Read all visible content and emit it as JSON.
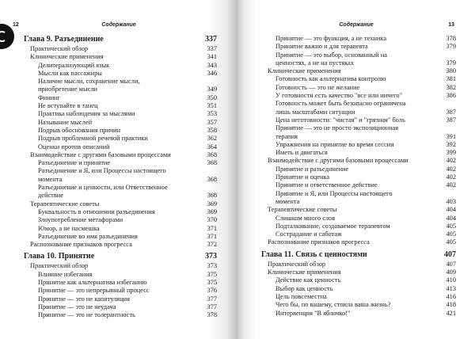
{
  "pages": [
    {
      "number": "12",
      "header": "Содержание",
      "entries": [
        {
          "kind": "chapter",
          "text": "Глава 9. Разъединение",
          "page": "337"
        },
        {
          "kind": "section",
          "text": "Практический обзор",
          "page": "337"
        },
        {
          "kind": "section",
          "text": "Клинические применения",
          "page": "341"
        },
        {
          "kind": "subsection",
          "text": "Делитерализующий язык",
          "page": "343"
        },
        {
          "kind": "subsection",
          "text": "Мысли как пассажиры",
          "page": "346"
        },
        {
          "kind": "subsection",
          "text": "Наличие мысли, сохранение мысли, приобретение мысли",
          "page": "349"
        },
        {
          "kind": "subsection",
          "text": "Фининг",
          "page": "350"
        },
        {
          "kind": "subsection",
          "text": "Не вступайте в танец",
          "page": "351"
        },
        {
          "kind": "subsection",
          "text": "Практика наблюдения за мыслями",
          "page": "353"
        },
        {
          "kind": "subsection",
          "text": "Называние мыслей",
          "page": "357"
        },
        {
          "kind": "subsection",
          "text": "Подрыв обоснования причин",
          "page": "358"
        },
        {
          "kind": "subsection",
          "text": "Подрыв проблемной речевой практики",
          "page": "362"
        },
        {
          "kind": "subsection",
          "text": "Оценки против описаний",
          "page": "364"
        },
        {
          "kind": "section",
          "text": "Взаимодействие с другими базовыми процессами",
          "page": "368"
        },
        {
          "kind": "subsection",
          "text": "Разъединение и принятие",
          "page": "368"
        },
        {
          "kind": "subsection",
          "text": "Разъединение и Я, или Процессы настоящего момента",
          "page": "368"
        },
        {
          "kind": "subsection",
          "text": "Разъединение и ценности, или Ответственное действие",
          "page": "368"
        },
        {
          "kind": "section",
          "text": "Терапевтические советы",
          "page": "369"
        },
        {
          "kind": "subsection",
          "text": "Буквальность в отношении разъединения",
          "page": "369"
        },
        {
          "kind": "subsection",
          "text": "Злоупотребление метафорами",
          "page": "370"
        },
        {
          "kind": "subsection",
          "text": "Юмор, а не насмешка",
          "page": "371"
        },
        {
          "kind": "subsection",
          "text": "Разъединение во имя разъединения",
          "page": "371"
        },
        {
          "kind": "section",
          "text": "Распознавание признаков прогресса",
          "page": "372"
        },
        {
          "kind": "chapter",
          "text": "Глава 10. Принятие",
          "page": "373"
        },
        {
          "kind": "section",
          "text": "Практический обзор",
          "page": "373"
        },
        {
          "kind": "subsection",
          "text": "Влияние избегания",
          "page": "375"
        },
        {
          "kind": "subsection",
          "text": "Принятие как альтернатива избеганию",
          "page": "375"
        },
        {
          "kind": "subsection",
          "text": "Принятие — это непрерывный процесс",
          "page": "376"
        },
        {
          "kind": "subsection",
          "text": "Принятие — это не капитуляция",
          "page": "377"
        },
        {
          "kind": "subsection",
          "text": "Принятие — это не неудача",
          "page": "377"
        },
        {
          "kind": "subsection",
          "text": "Принятие — это не толерантность",
          "page": "378"
        }
      ]
    },
    {
      "number": "13",
      "header": "Содержание",
      "entries": [
        {
          "kind": "subsection",
          "text": "Принятие — это функция, а не техника",
          "page": "378"
        },
        {
          "kind": "subsection",
          "text": "Принятие важно и для терапевта",
          "page": "379"
        },
        {
          "kind": "subsection",
          "text": "Принятие — это выбор, основанный на ценностях, а не на пустяках",
          "page": "379"
        },
        {
          "kind": "section",
          "text": "Клинические применения",
          "page": "380"
        },
        {
          "kind": "subsection",
          "text": "Готовность как альтернатива контролю",
          "page": "381"
        },
        {
          "kind": "subsection",
          "text": "Готовность — это не желание",
          "page": "382"
        },
        {
          "kind": "subsection",
          "text": "У готовности есть качество \"все или ничего\"",
          "page": "386"
        },
        {
          "kind": "subsection",
          "text": "Готовность может быть безопасно ограничена лишь масштабами ситуации",
          "page": "387"
        },
        {
          "kind": "subsection",
          "text": "Цена неготовности: \"чистая\" и \"грязная\" боль",
          "page": "387"
        },
        {
          "kind": "subsection",
          "text": "Принятие — это не просто экспозиционная терапия",
          "page": "391"
        },
        {
          "kind": "subsection",
          "text": "Упражнения на принятие во время сессии",
          "page": "392"
        },
        {
          "kind": "subsection",
          "text": "Иметь и двигаться",
          "page": "399"
        },
        {
          "kind": "section",
          "text": "Взаимодействие с другими базовыми процессами",
          "page": "402"
        },
        {
          "kind": "subsection",
          "text": "Принятие и разъединение",
          "page": "402"
        },
        {
          "kind": "subsection",
          "text": "Принятие и оценка",
          "page": "402"
        },
        {
          "kind": "subsection",
          "text": "Принятие и ответственное действие",
          "page": "402"
        },
        {
          "kind": "subsection",
          "text": "Принятие и Я, или Процессы настоящего момента",
          "page": "403"
        },
        {
          "kind": "section",
          "text": "Терапевтические советы",
          "page": "404"
        },
        {
          "kind": "subsection",
          "text": "Слишком много слов",
          "page": "404"
        },
        {
          "kind": "subsection",
          "text": "Подталкивание, создаваемое терапевтом",
          "page": "405"
        },
        {
          "kind": "subsection",
          "text": "Сострадание и саботаж",
          "page": "405"
        },
        {
          "kind": "section",
          "text": "Распознавание признаков прогресса",
          "page": "405"
        },
        {
          "kind": "chapter",
          "text": "Глава 11. Связь с ценностями",
          "page": "407"
        },
        {
          "kind": "section",
          "text": "Практический обзор",
          "page": "407"
        },
        {
          "kind": "section",
          "text": "Клинические применения",
          "page": "409"
        },
        {
          "kind": "subsection",
          "text": "Действие как ценность",
          "page": "410"
        },
        {
          "kind": "subsection",
          "text": "Выбор как ценность",
          "page": "413"
        },
        {
          "kind": "subsection",
          "text": "Цель повсеместна",
          "page": "416"
        },
        {
          "kind": "subsection",
          "text": "Чего бы, по вашему, стоила ваша жизнь?",
          "page": "418"
        },
        {
          "kind": "subsection",
          "text": "Интервенция \"В яблочко!\"",
          "page": "421"
        }
      ]
    }
  ]
}
